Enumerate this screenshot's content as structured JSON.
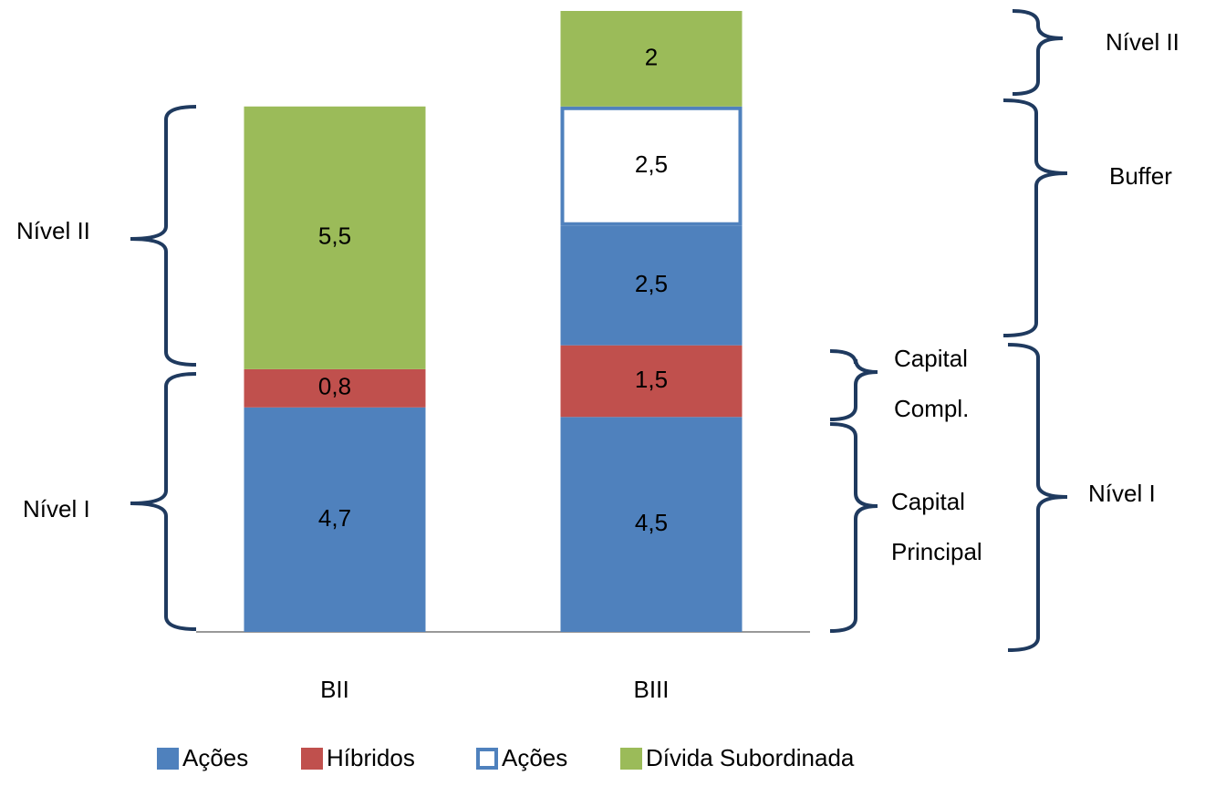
{
  "chart_data": {
    "type": "stacked_bar",
    "categories": [
      "BII",
      "BIII"
    ],
    "ylim": [
      0,
      13
    ],
    "series": [
      {
        "name": "Ações",
        "color": "#4f81bd",
        "values": [
          4.7,
          4.5
        ],
        "value_labels": [
          "4,7",
          "4,5"
        ]
      },
      {
        "name": "Híbridos",
        "color": "#c0504d",
        "values": [
          0.8,
          1.5
        ],
        "value_labels": [
          "0,8",
          "1,5"
        ]
      },
      {
        "color": "#4f81bd",
        "values": [
          null,
          2.5
        ],
        "value_labels": [
          null,
          "2,5"
        ]
      },
      {
        "name": "Ações",
        "color": "#ffffff",
        "stroke": "#4f81bd",
        "values": [
          null,
          2.5
        ],
        "value_labels": [
          null,
          "2,5"
        ]
      },
      {
        "name": "Dívida Subordinada",
        "color": "#9bbb59",
        "values": [
          5.5,
          2
        ],
        "value_labels": [
          "5,5",
          "2"
        ]
      }
    ],
    "annotations": [
      [
        "Nível II"
      ],
      [
        "Nível I"
      ],
      [
        "Nível II"
      ],
      [
        "Buffer"
      ],
      [
        "Capital",
        "Compl."
      ],
      [
        "Capital",
        "Principal"
      ],
      [
        "Nível I"
      ]
    ]
  }
}
